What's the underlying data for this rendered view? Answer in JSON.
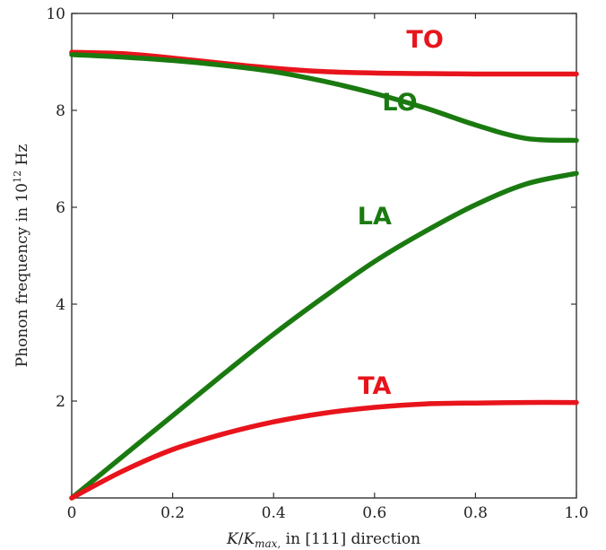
{
  "chart_data": {
    "type": "line",
    "xlabel": "K/K_max, in [111] direction",
    "xlabel_parts": {
      "k": "K",
      "slash": "/",
      "kmax": "K",
      "sub": "max,",
      "rest": " in [111] direction"
    },
    "ylabel": "Phonon frequency in 10^12 Hz",
    "ylabel_parts": {
      "text": "Phonon frequency in 10",
      "sup": "12",
      "unit": " Hz"
    },
    "xlim": [
      0,
      1.0
    ],
    "ylim": [
      0,
      10
    ],
    "x_ticks": [
      0,
      0.2,
      0.4,
      0.6,
      0.8,
      1.0
    ],
    "x_tick_labels": [
      "0",
      "0.2",
      "0.4",
      "0.6",
      "0.8",
      "1.0"
    ],
    "y_ticks": [
      2,
      4,
      6,
      8,
      10
    ],
    "y_tick_labels": [
      "2",
      "4",
      "6",
      "8",
      "10"
    ],
    "grid": false,
    "series": [
      {
        "name": "TO",
        "color": "#e8141c",
        "x": [
          0,
          0.1,
          0.2,
          0.3,
          0.4,
          0.5,
          0.6,
          0.7,
          0.8,
          0.9,
          1.0
        ],
        "y": [
          9.2,
          9.17,
          9.08,
          8.97,
          8.87,
          8.8,
          8.77,
          8.76,
          8.75,
          8.75,
          8.75
        ]
      },
      {
        "name": "LO",
        "color": "#1a7a10",
        "x": [
          0,
          0.1,
          0.2,
          0.3,
          0.4,
          0.5,
          0.6,
          0.7,
          0.8,
          0.9,
          1.0
        ],
        "y": [
          9.15,
          9.1,
          9.03,
          8.93,
          8.8,
          8.6,
          8.35,
          8.05,
          7.7,
          7.42,
          7.38
        ]
      },
      {
        "name": "LA",
        "color": "#1a7a10",
        "x": [
          0,
          0.1,
          0.2,
          0.3,
          0.4,
          0.5,
          0.6,
          0.7,
          0.8,
          0.9,
          1.0
        ],
        "y": [
          0.0,
          0.85,
          1.7,
          2.55,
          3.38,
          4.15,
          4.88,
          5.5,
          6.05,
          6.48,
          6.7
        ]
      },
      {
        "name": "TA",
        "color": "#e8141c",
        "x": [
          0,
          0.1,
          0.2,
          0.3,
          0.4,
          0.5,
          0.6,
          0.7,
          0.8,
          0.9,
          1.0
        ],
        "y": [
          0.0,
          0.55,
          1.0,
          1.32,
          1.57,
          1.75,
          1.87,
          1.94,
          1.96,
          1.97,
          1.97
        ]
      }
    ],
    "labels": [
      {
        "text": "TO",
        "color": "#e8141c",
        "x": 0.7,
        "y": 9.3
      },
      {
        "text": "LO",
        "color": "#1a7a10",
        "x": 0.65,
        "y": 8.0
      },
      {
        "text": "LA",
        "color": "#1a7a10",
        "x": 0.6,
        "y": 5.65
      },
      {
        "text": "TA",
        "color": "#e8141c",
        "x": 0.6,
        "y": 2.15
      }
    ]
  }
}
